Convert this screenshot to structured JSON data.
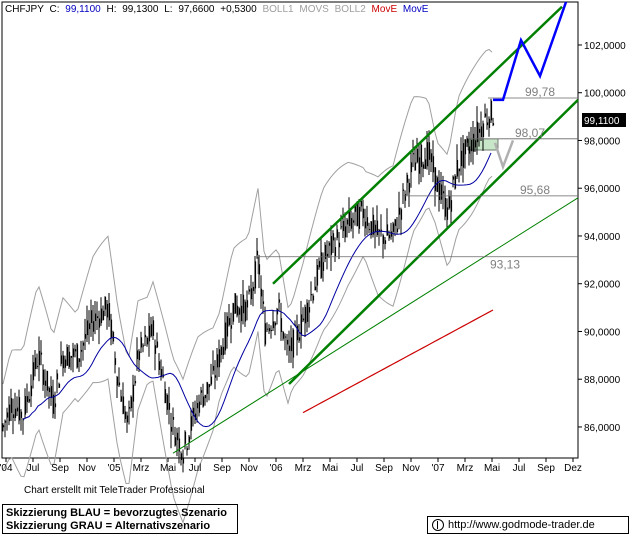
{
  "header": {
    "symbol": "CHFJPY",
    "c_label": "C:",
    "close": "99,1100",
    "h_label": "H:",
    "high": "99,1300",
    "l_label": "L:",
    "low": "97,6600",
    "change": "+0,5300",
    "boll1": "BOLL1",
    "movs": "MOVS",
    "boll2": "BOLL2",
    "move_red": "MovE",
    "move_blue": "MovE"
  },
  "chart_data": {
    "type": "line",
    "title": "",
    "ylim": [
      84.7,
      103.8
    ],
    "y_ticks": [
      "102,0000",
      "100,0000",
      "98,0000",
      "96,0000",
      "94,0000",
      "92,0000",
      "90,0000",
      "88,0000",
      "86,0000"
    ],
    "y_tick_values": [
      102,
      100,
      98,
      96,
      94,
      92,
      90,
      88,
      86
    ],
    "x_ticks": [
      "'04",
      "Jul",
      "Sep",
      "Nov",
      "'05",
      "Mrz",
      "Mai",
      "Jul",
      "Sep",
      "Nov",
      "'06",
      "Mrz",
      "Mai",
      "Jul",
      "Sep",
      "Nov",
      "'07",
      "Mrz",
      "Mai",
      "Jul",
      "Sep",
      "Dez"
    ],
    "last_price_label": "99,1100",
    "last_price": 99.11,
    "levels": [
      {
        "label": "99,78",
        "value": 99.78
      },
      {
        "label": "98,07",
        "value": 98.07
      },
      {
        "label": "95,68",
        "value": 95.68
      },
      {
        "label": "93,13",
        "value": 93.13
      }
    ],
    "colors": {
      "candles": "#000000",
      "bollinger": "#a0a0a0",
      "moving_avg_blue": "#0000a0",
      "moving_avg_red": "#cc0000",
      "trend_channel": "#008000",
      "scenario_blue": "#0000ff",
      "scenario_gray": "#b0b0b0",
      "zone_fill": "#c8e6c8"
    }
  },
  "footer": {
    "credit": "Chart erstellt mit TeleTrader Professional",
    "scenario_blue": "Skizzierung BLAU = bevorzugtes Szenario",
    "scenario_gray": "Skizzierung GRAU = Alternativszenario",
    "url": "http://www.godmode-trader.de"
  }
}
